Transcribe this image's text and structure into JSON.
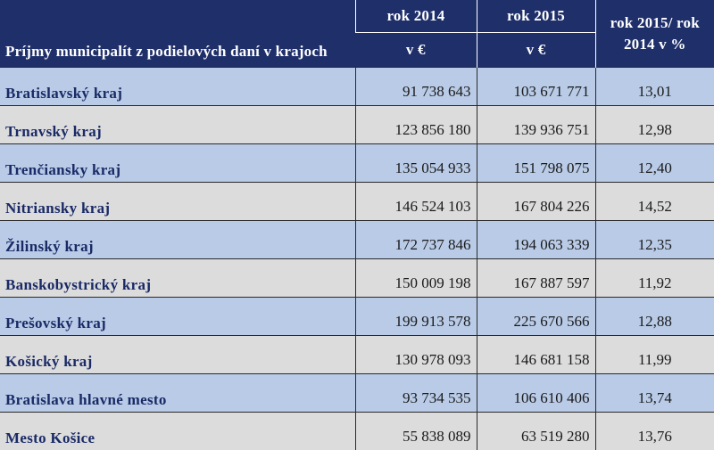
{
  "header": {
    "title": "Príjmy municipalít z podielových daní v krajoch",
    "col_2014": "rok  2014",
    "col_2015": "rok  2015",
    "unit_2014": "v €",
    "unit_2015": "v €",
    "col_change_line1": "rok 2015/ rok",
    "col_change_line2": "2014 v %"
  },
  "rows": [
    {
      "region": "Bratislavský kraj",
      "y2014": "91 738 643",
      "y2015": "103 671 771",
      "change": "13,01"
    },
    {
      "region": "Trnavský kraj",
      "y2014": "123 856 180",
      "y2015": "139 936 751",
      "change": "12,98"
    },
    {
      "region": "Trenčiansky kraj",
      "y2014": "135 054 933",
      "y2015": "151 798 075",
      "change": "12,40"
    },
    {
      "region": "Nitriansky kraj",
      "y2014": "146 524 103",
      "y2015": "167 804 226",
      "change": "14,52"
    },
    {
      "region": "Žilinský kraj",
      "y2014": "172 737 846",
      "y2015": "194 063 339",
      "change": "12,35"
    },
    {
      "region": "Banskobystrický kraj",
      "y2014": "150 009 198",
      "y2015": "167 887 597",
      "change": "11,92"
    },
    {
      "region": "Prešovský kraj",
      "y2014": "199 913 578",
      "y2015": "225 670 566",
      "change": "12,88"
    },
    {
      "region": "Košický kraj",
      "y2014": "130 978 093",
      "y2015": "146 681 158",
      "change": "11,99"
    },
    {
      "region": "Bratislava hlavné mesto",
      "y2014": "93 734 535",
      "y2015": "106 610 406",
      "change": "13,74"
    },
    {
      "region": "Mesto Košice",
      "y2014": "55 838 089",
      "y2015": "63 519 280",
      "change": "13,76"
    }
  ],
  "colors": {
    "header_bg": "#1f2f6a",
    "row_blue": "#b9cbe7",
    "row_gray": "#dcdcdc",
    "region_text": "#1a2a66"
  }
}
